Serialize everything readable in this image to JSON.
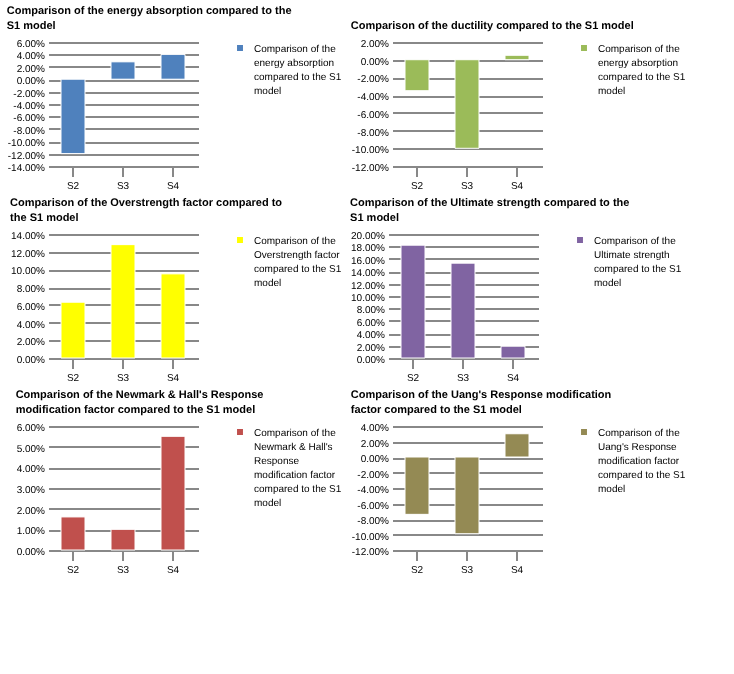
{
  "chart_data": [
    {
      "type": "bar",
      "title": "Comparison of the energy absorption compared to the S1 model",
      "categories": [
        "S2",
        "S3",
        "S4"
      ],
      "series": [
        {
          "name": "Comparison of the energy absorption compared to the S1 model",
          "color": "#4f81bd",
          "values": [
            -12,
            2.8,
            4
          ]
        }
      ],
      "ylim": [
        -14,
        6
      ],
      "yticks": [
        {
          "value": 6,
          "label": "6.00%"
        },
        {
          "value": 4,
          "label": "4.00%"
        },
        {
          "value": 2,
          "label": "2.00%"
        },
        {
          "value": 0,
          "label": "0.00%"
        },
        {
          "value": -2,
          "label": "-2.00%"
        },
        {
          "value": -4,
          "label": "-4.00%"
        },
        {
          "value": -6,
          "label": "-6.00%"
        },
        {
          "value": -8,
          "label": "-8.00%"
        },
        {
          "value": -10,
          "label": "-10.00%"
        },
        {
          "value": -12,
          "label": "-12.00%"
        },
        {
          "value": -14,
          "label": "-14.00%"
        }
      ],
      "grid": "y",
      "legend": "right"
    },
    {
      "type": "bar",
      "title": "Comparison of the ductility compared to the S1 model",
      "categories": [
        "S2",
        "S3",
        "S4"
      ],
      "series": [
        {
          "name": "Comparison of the energy absorption compared to the S1 model",
          "color": "#9bbb59",
          "values": [
            -3.5,
            -10,
            0.5
          ]
        }
      ],
      "ylim": [
        -12,
        2
      ],
      "yticks": [
        {
          "value": 2,
          "label": "2.00%"
        },
        {
          "value": 0,
          "label": "0.00%"
        },
        {
          "value": -2,
          "label": "-2.00%"
        },
        {
          "value": -4,
          "label": "-4.00%"
        },
        {
          "value": -6,
          "label": "-6.00%"
        },
        {
          "value": -8,
          "label": "-8.00%"
        },
        {
          "value": -10,
          "label": "-10.00%"
        },
        {
          "value": -12,
          "label": "-12.00%"
        }
      ],
      "grid": "y",
      "legend": "right"
    },
    {
      "type": "bar",
      "title": "Comparison of the Overstrength factor compared to the S1 model",
      "categories": [
        "S2",
        "S3",
        "S4"
      ],
      "series": [
        {
          "name": "Comparison of the Overstrength factor compared to the S1 model",
          "color": "#ffff00",
          "values": [
            6.3,
            12.8,
            9.5
          ]
        }
      ],
      "ylim": [
        0,
        14
      ],
      "yticks": [
        {
          "value": 0,
          "label": "0.00%"
        },
        {
          "value": 2,
          "label": "2.00%"
        },
        {
          "value": 4,
          "label": "4.00%"
        },
        {
          "value": 6,
          "label": "6.00%"
        },
        {
          "value": 8,
          "label": "8.00%"
        },
        {
          "value": 10,
          "label": "10.00%"
        },
        {
          "value": 12,
          "label": "12.00%"
        },
        {
          "value": 14,
          "label": "14.00%"
        }
      ],
      "grid": "y",
      "legend": "right"
    },
    {
      "type": "bar",
      "title": "Comparison of the Ultimate strength compared to the S1 model",
      "categories": [
        "S2",
        "S3",
        "S4"
      ],
      "series": [
        {
          "name": "Comparison of the Ultimate strength compared to the S1 model",
          "color": "#8064a2",
          "values": [
            18.2,
            15.3,
            1.9
          ]
        }
      ],
      "ylim": [
        0,
        20
      ],
      "yticks": [
        {
          "value": 0,
          "label": "0.00%"
        },
        {
          "value": 2,
          "label": "2.00%"
        },
        {
          "value": 4,
          "label": "4.00%"
        },
        {
          "value": 6,
          "label": "6.00%"
        },
        {
          "value": 8,
          "label": "8.00%"
        },
        {
          "value": 10,
          "label": "10.00%"
        },
        {
          "value": 12,
          "label": "12.00%"
        },
        {
          "value": 14,
          "label": "14.00%"
        },
        {
          "value": 16,
          "label": "16.00%"
        },
        {
          "value": 18,
          "label": "18.00%"
        },
        {
          "value": 20,
          "label": "20.00%"
        }
      ],
      "grid": "y",
      "legend": "right"
    },
    {
      "type": "bar",
      "title": "Comparison of the Newmark & Hall's Response modification factor compared to the S1 model",
      "categories": [
        "S2",
        "S3",
        "S4"
      ],
      "series": [
        {
          "name": "Comparison of the Newmark & Hall's Response modification factor compared to the S1 model",
          "color": "#c0504d",
          "values": [
            1.6,
            1,
            5.5
          ]
        }
      ],
      "ylim": [
        0,
        6
      ],
      "yticks": [
        {
          "value": 0,
          "label": "0.00%"
        },
        {
          "value": 1,
          "label": "1.00%"
        },
        {
          "value": 2,
          "label": "2.00%"
        },
        {
          "value": 3,
          "label": "3.00%"
        },
        {
          "value": 4,
          "label": "4.00%"
        },
        {
          "value": 5,
          "label": "5.00%"
        },
        {
          "value": 6,
          "label": "6.00%"
        }
      ],
      "grid": "y",
      "legend": "right"
    },
    {
      "type": "bar",
      "title": "Comparison of the Uang's Response modification factor compared to the S1 model",
      "categories": [
        "S2",
        "S3",
        "S4"
      ],
      "series": [
        {
          "name": "Comparison of the Uang's Response modification factor compared to the S1 model",
          "color": "#948a54",
          "values": [
            -7.4,
            -9.9,
            3
          ]
        }
      ],
      "ylim": [
        -12,
        4
      ],
      "yticks": [
        {
          "value": 4,
          "label": "4.00%"
        },
        {
          "value": 2,
          "label": "2.00%"
        },
        {
          "value": 0,
          "label": "0.00%"
        },
        {
          "value": -2,
          "label": "-2.00%"
        },
        {
          "value": -4,
          "label": "-4.00%"
        },
        {
          "value": -6,
          "label": "-6.00%"
        },
        {
          "value": -8,
          "label": "-8.00%"
        },
        {
          "value": -10,
          "label": "-10.00%"
        },
        {
          "value": -12,
          "label": "-12.00%"
        }
      ],
      "grid": "y",
      "legend": "right"
    }
  ]
}
